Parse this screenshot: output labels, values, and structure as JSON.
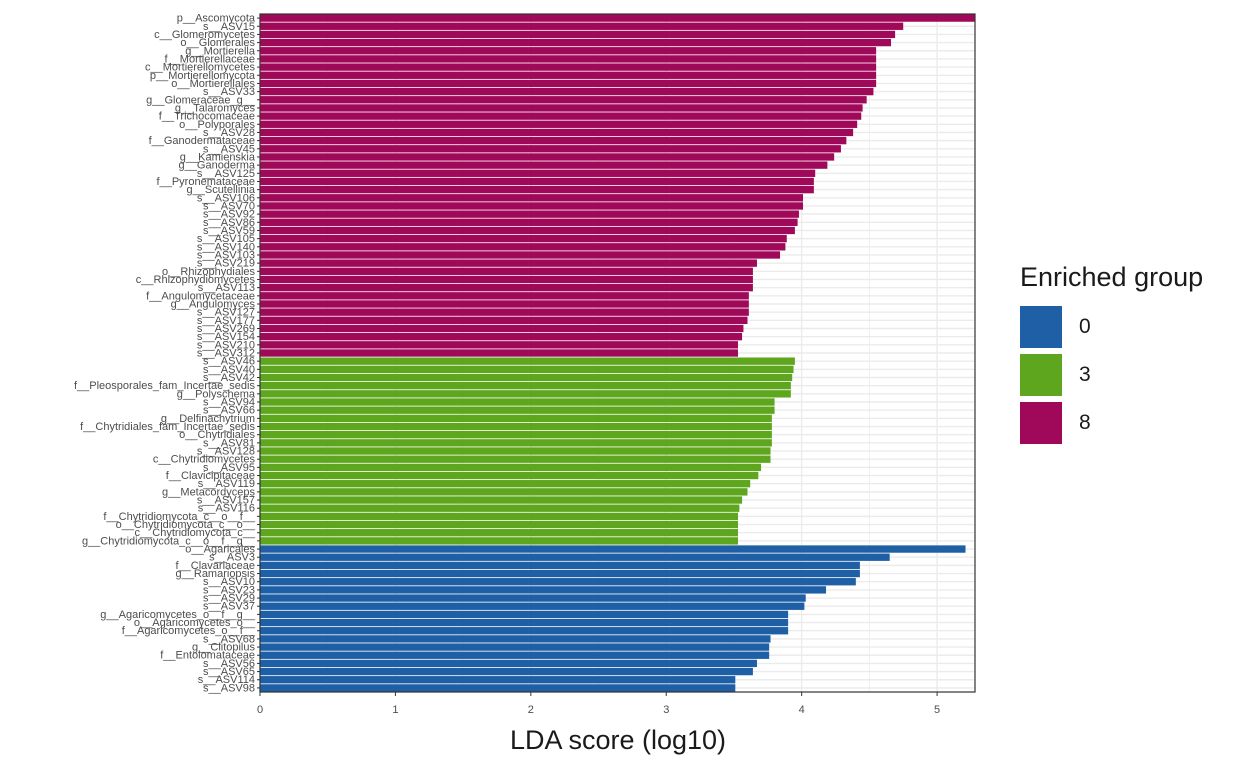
{
  "chart_data": {
    "type": "bar",
    "orientation": "horizontal",
    "title": "",
    "xlabel": "LDA score (log10)",
    "ylabel": "",
    "xlim": [
      0,
      5.28
    ],
    "xticks": [
      0,
      1,
      2,
      3,
      4,
      5
    ],
    "grid": true,
    "legend": {
      "title": "Enriched group",
      "position": "right",
      "entries": [
        {
          "label": "0",
          "color": "#1F5FA6"
        },
        {
          "label": "3",
          "color": "#5FA61F"
        },
        {
          "label": "8",
          "color": "#A0095A"
        }
      ]
    },
    "bars": [
      {
        "label": "p__Ascomycota",
        "value": 5.28,
        "group": "8"
      },
      {
        "label": "s__ASV15",
        "value": 4.75,
        "group": "8"
      },
      {
        "label": "c__Glomeromycetes",
        "value": 4.69,
        "group": "8"
      },
      {
        "label": "o__Glomerales",
        "value": 4.66,
        "group": "8"
      },
      {
        "label": "g__Mortierella",
        "value": 4.55,
        "group": "8"
      },
      {
        "label": "f__Mortierellaceae",
        "value": 4.55,
        "group": "8"
      },
      {
        "label": "c__Mortierellomycetes",
        "value": 4.55,
        "group": "8"
      },
      {
        "label": "p__Mortierellomycota",
        "value": 4.55,
        "group": "8"
      },
      {
        "label": "o__Mortierellales",
        "value": 4.55,
        "group": "8"
      },
      {
        "label": "s__ASV33",
        "value": 4.53,
        "group": "8"
      },
      {
        "label": "g__Glomeraceae_g__",
        "value": 4.48,
        "group": "8"
      },
      {
        "label": "g__Talaromyces",
        "value": 4.45,
        "group": "8"
      },
      {
        "label": "f__Trichocomaceae",
        "value": 4.44,
        "group": "8"
      },
      {
        "label": "o__Polyporales",
        "value": 4.41,
        "group": "8"
      },
      {
        "label": "s__ASV28",
        "value": 4.38,
        "group": "8"
      },
      {
        "label": "f__Ganodermataceae",
        "value": 4.33,
        "group": "8"
      },
      {
        "label": "s__ASV45",
        "value": 4.29,
        "group": "8"
      },
      {
        "label": "g__Kamienskia",
        "value": 4.24,
        "group": "8"
      },
      {
        "label": "g__Ganoderma",
        "value": 4.19,
        "group": "8"
      },
      {
        "label": "s__ASV125",
        "value": 4.1,
        "group": "8"
      },
      {
        "label": "f__Pyronemataceae",
        "value": 4.09,
        "group": "8"
      },
      {
        "label": "g__Scutellinia",
        "value": 4.09,
        "group": "8"
      },
      {
        "label": "s__ASV106",
        "value": 4.01,
        "group": "8"
      },
      {
        "label": "s__ASV70",
        "value": 4.01,
        "group": "8"
      },
      {
        "label": "s__ASV92",
        "value": 3.98,
        "group": "8"
      },
      {
        "label": "s__ASV86",
        "value": 3.97,
        "group": "8"
      },
      {
        "label": "s__ASV59",
        "value": 3.95,
        "group": "8"
      },
      {
        "label": "s__ASV105",
        "value": 3.89,
        "group": "8"
      },
      {
        "label": "s__ASV140",
        "value": 3.88,
        "group": "8"
      },
      {
        "label": "s__ASV103",
        "value": 3.84,
        "group": "8"
      },
      {
        "label": "s__ASV219",
        "value": 3.67,
        "group": "8"
      },
      {
        "label": "o__Rhizophydiales",
        "value": 3.64,
        "group": "8"
      },
      {
        "label": "c__Rhizophydiomycetes",
        "value": 3.64,
        "group": "8"
      },
      {
        "label": "s__ASV113",
        "value": 3.64,
        "group": "8"
      },
      {
        "label": "f__Angulomycetaceae",
        "value": 3.61,
        "group": "8"
      },
      {
        "label": "g__Angulomyces",
        "value": 3.61,
        "group": "8"
      },
      {
        "label": "s__ASV127",
        "value": 3.61,
        "group": "8"
      },
      {
        "label": "s__ASV177",
        "value": 3.6,
        "group": "8"
      },
      {
        "label": "s__ASV269",
        "value": 3.57,
        "group": "8"
      },
      {
        "label": "s__ASV154",
        "value": 3.56,
        "group": "8"
      },
      {
        "label": "s__ASV210",
        "value": 3.53,
        "group": "8"
      },
      {
        "label": "s__ASV312",
        "value": 3.53,
        "group": "8"
      },
      {
        "label": "s__ASV46",
        "value": 3.95,
        "group": "3"
      },
      {
        "label": "s__ASV40",
        "value": 3.94,
        "group": "3"
      },
      {
        "label": "s__ASV42",
        "value": 3.93,
        "group": "3"
      },
      {
        "label": "f__Pleosporales_fam_Incertae_sedis",
        "value": 3.92,
        "group": "3"
      },
      {
        "label": "g__Polyschema",
        "value": 3.92,
        "group": "3"
      },
      {
        "label": "s__ASV94",
        "value": 3.8,
        "group": "3"
      },
      {
        "label": "s__ASV66",
        "value": 3.8,
        "group": "3"
      },
      {
        "label": "g__Delfinachytrium",
        "value": 3.78,
        "group": "3"
      },
      {
        "label": "f__Chytridiales_fam_Incertae_sedis",
        "value": 3.78,
        "group": "3"
      },
      {
        "label": "o__Chytridiales",
        "value": 3.78,
        "group": "3"
      },
      {
        "label": "s__ASV81",
        "value": 3.78,
        "group": "3"
      },
      {
        "label": "s__ASV128",
        "value": 3.77,
        "group": "3"
      },
      {
        "label": "c__Chytridiomycetes",
        "value": 3.77,
        "group": "3"
      },
      {
        "label": "s__ASV95",
        "value": 3.7,
        "group": "3"
      },
      {
        "label": "f__Clavicipitaceae",
        "value": 3.68,
        "group": "3"
      },
      {
        "label": "s__ASV119",
        "value": 3.62,
        "group": "3"
      },
      {
        "label": "g__Metacordyceps",
        "value": 3.6,
        "group": "3"
      },
      {
        "label": "s__ASV157",
        "value": 3.56,
        "group": "3"
      },
      {
        "label": "s__ASV116",
        "value": 3.54,
        "group": "3"
      },
      {
        "label": "f__Chytridiomycota_c__o__f__",
        "value": 3.53,
        "group": "3"
      },
      {
        "label": "o__Chytridiomycota_c__o__",
        "value": 3.53,
        "group": "3"
      },
      {
        "label": "c__Chytridiomycota_c__",
        "value": 3.53,
        "group": "3"
      },
      {
        "label": "g__Chytridiomycota_c__o__f__g__",
        "value": 3.53,
        "group": "3"
      },
      {
        "label": "o__Agaricales",
        "value": 5.21,
        "group": "0"
      },
      {
        "label": "s__ASV3",
        "value": 4.65,
        "group": "0"
      },
      {
        "label": "f__Clavariaceae",
        "value": 4.43,
        "group": "0"
      },
      {
        "label": "g__Ramariopsis",
        "value": 4.43,
        "group": "0"
      },
      {
        "label": "s__ASV10",
        "value": 4.4,
        "group": "0"
      },
      {
        "label": "s__ASV23",
        "value": 4.18,
        "group": "0"
      },
      {
        "label": "s__ASV29",
        "value": 4.03,
        "group": "0"
      },
      {
        "label": "s__ASV37",
        "value": 4.02,
        "group": "0"
      },
      {
        "label": "g__Agaricomycetes_o__f__g__",
        "value": 3.9,
        "group": "0"
      },
      {
        "label": "o__Agaricomycetes_o__",
        "value": 3.9,
        "group": "0"
      },
      {
        "label": "f__Agaricomycetes_o__f__",
        "value": 3.9,
        "group": "0"
      },
      {
        "label": "s__ASV68",
        "value": 3.77,
        "group": "0"
      },
      {
        "label": "g__Clitopilus",
        "value": 3.76,
        "group": "0"
      },
      {
        "label": "f__Entolomataceae",
        "value": 3.76,
        "group": "0"
      },
      {
        "label": "s__ASV56",
        "value": 3.67,
        "group": "0"
      },
      {
        "label": "s__ASV65",
        "value": 3.64,
        "group": "0"
      },
      {
        "label": "s__ASV114",
        "value": 3.51,
        "group": "0"
      },
      {
        "label": "s__ASV98",
        "value": 3.51,
        "group": "0"
      }
    ]
  }
}
